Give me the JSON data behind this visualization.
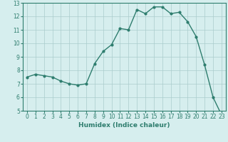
{
  "x": [
    0,
    1,
    2,
    3,
    4,
    5,
    6,
    7,
    8,
    9,
    10,
    11,
    12,
    13,
    14,
    15,
    16,
    17,
    18,
    19,
    20,
    21,
    22,
    23
  ],
  "y": [
    7.5,
    7.7,
    7.6,
    7.5,
    7.2,
    7.0,
    6.9,
    7.0,
    8.5,
    9.4,
    9.9,
    11.1,
    11.0,
    12.5,
    12.2,
    12.7,
    12.7,
    12.2,
    12.3,
    11.6,
    10.5,
    8.4,
    6.0,
    4.7
  ],
  "xlabel": "Humidex (Indice chaleur)",
  "line_color": "#2e7d6e",
  "bg_color": "#d6eeee",
  "grid_color": "#aacccc",
  "xlim": [
    -0.5,
    23.5
  ],
  "ylim": [
    5,
    13
  ],
  "yticks": [
    5,
    6,
    7,
    8,
    9,
    10,
    11,
    12,
    13
  ],
  "xticks": [
    0,
    1,
    2,
    3,
    4,
    5,
    6,
    7,
    8,
    9,
    10,
    11,
    12,
    13,
    14,
    15,
    16,
    17,
    18,
    19,
    20,
    21,
    22,
    23
  ],
  "tick_fontsize": 5.5,
  "xlabel_fontsize": 6.5
}
